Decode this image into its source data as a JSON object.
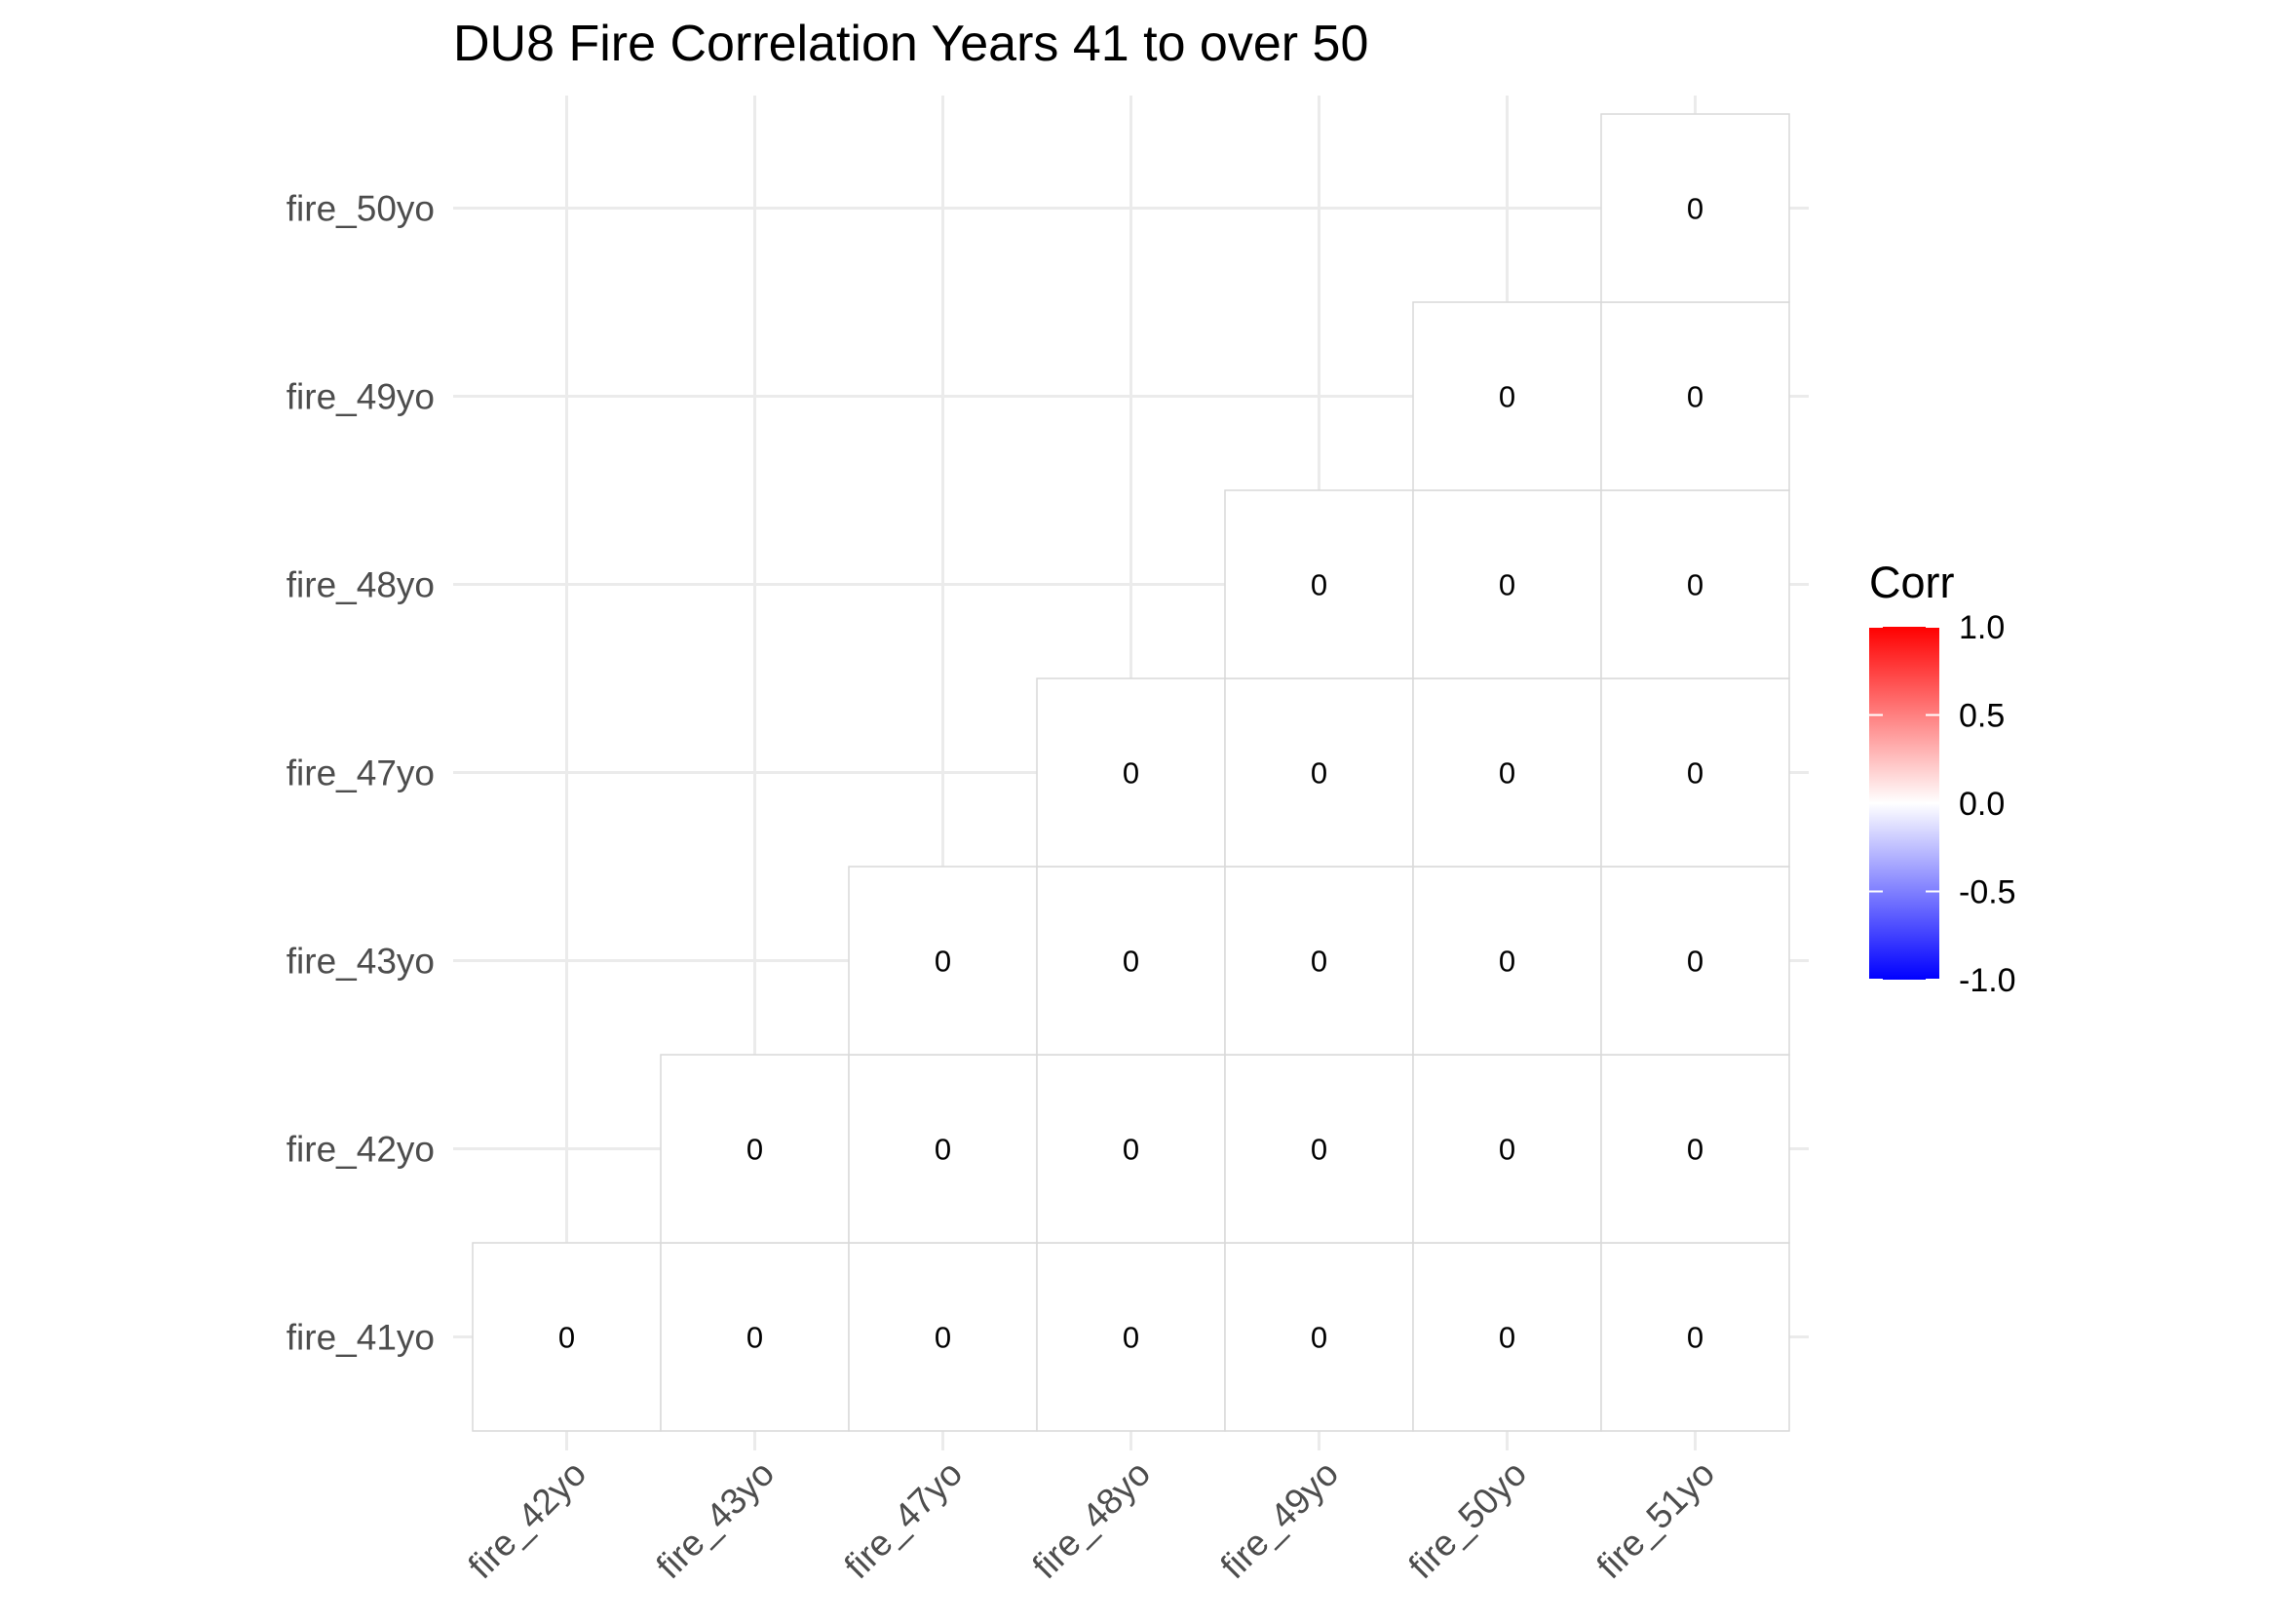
{
  "chart_data": {
    "type": "heatmap",
    "title": "DU8 Fire Correlation Years 41 to over 50",
    "x_categories": [
      "fire_42yo",
      "fire_43yo",
      "fire_47yo",
      "fire_48yo",
      "fire_49yo",
      "fire_50yo",
      "fire_51yo"
    ],
    "y_categories": [
      "fire_41yo",
      "fire_42yo",
      "fire_43yo",
      "fire_47yo",
      "fire_48yo",
      "fire_49yo",
      "fire_50yo"
    ],
    "cells": [
      {
        "x": "fire_42yo",
        "y": "fire_41yo",
        "value": 0,
        "label": "0"
      },
      {
        "x": "fire_43yo",
        "y": "fire_41yo",
        "value": 0,
        "label": "0"
      },
      {
        "x": "fire_47yo",
        "y": "fire_41yo",
        "value": 0,
        "label": "0"
      },
      {
        "x": "fire_48yo",
        "y": "fire_41yo",
        "value": 0,
        "label": "0"
      },
      {
        "x": "fire_49yo",
        "y": "fire_41yo",
        "value": 0,
        "label": "0"
      },
      {
        "x": "fire_50yo",
        "y": "fire_41yo",
        "value": 0,
        "label": "0"
      },
      {
        "x": "fire_51yo",
        "y": "fire_41yo",
        "value": 0,
        "label": "0"
      },
      {
        "x": "fire_43yo",
        "y": "fire_42yo",
        "value": 0,
        "label": "0"
      },
      {
        "x": "fire_47yo",
        "y": "fire_42yo",
        "value": 0,
        "label": "0"
      },
      {
        "x": "fire_48yo",
        "y": "fire_42yo",
        "value": 0,
        "label": "0"
      },
      {
        "x": "fire_49yo",
        "y": "fire_42yo",
        "value": 0,
        "label": "0"
      },
      {
        "x": "fire_50yo",
        "y": "fire_42yo",
        "value": 0,
        "label": "0"
      },
      {
        "x": "fire_51yo",
        "y": "fire_42yo",
        "value": 0,
        "label": "0"
      },
      {
        "x": "fire_47yo",
        "y": "fire_43yo",
        "value": 0,
        "label": "0"
      },
      {
        "x": "fire_48yo",
        "y": "fire_43yo",
        "value": 0,
        "label": "0"
      },
      {
        "x": "fire_49yo",
        "y": "fire_43yo",
        "value": 0,
        "label": "0"
      },
      {
        "x": "fire_50yo",
        "y": "fire_43yo",
        "value": 0,
        "label": "0"
      },
      {
        "x": "fire_51yo",
        "y": "fire_43yo",
        "value": 0,
        "label": "0"
      },
      {
        "x": "fire_48yo",
        "y": "fire_47yo",
        "value": 0,
        "label": "0"
      },
      {
        "x": "fire_49yo",
        "y": "fire_47yo",
        "value": 0,
        "label": "0"
      },
      {
        "x": "fire_50yo",
        "y": "fire_47yo",
        "value": 0,
        "label": "0"
      },
      {
        "x": "fire_51yo",
        "y": "fire_47yo",
        "value": 0,
        "label": "0"
      },
      {
        "x": "fire_49yo",
        "y": "fire_48yo",
        "value": 0,
        "label": "0"
      },
      {
        "x": "fire_50yo",
        "y": "fire_48yo",
        "value": 0,
        "label": "0"
      },
      {
        "x": "fire_51yo",
        "y": "fire_48yo",
        "value": 0,
        "label": "0"
      },
      {
        "x": "fire_50yo",
        "y": "fire_49yo",
        "value": 0,
        "label": "0"
      },
      {
        "x": "fire_51yo",
        "y": "fire_49yo",
        "value": 0,
        "label": "0"
      },
      {
        "x": "fire_51yo",
        "y": "fire_50yo",
        "value": 0,
        "label": "0"
      }
    ],
    "legend": {
      "title": "Corr",
      "range": [
        -1.0,
        1.0
      ],
      "ticks": [
        "1.0",
        "0.5",
        "0.0",
        "-0.5",
        "-1.0"
      ],
      "colors": {
        "low": "#0000ff",
        "mid": "#ffffff",
        "high": "#ff0000"
      },
      "placement": "right"
    },
    "grid": true,
    "x_tick_rotation_deg": 45,
    "colors": {
      "background": "#ffffff",
      "gridline": "#ebebeb",
      "cell_border": "#d9d9d9",
      "tick_label": "#4d4d4d"
    }
  }
}
